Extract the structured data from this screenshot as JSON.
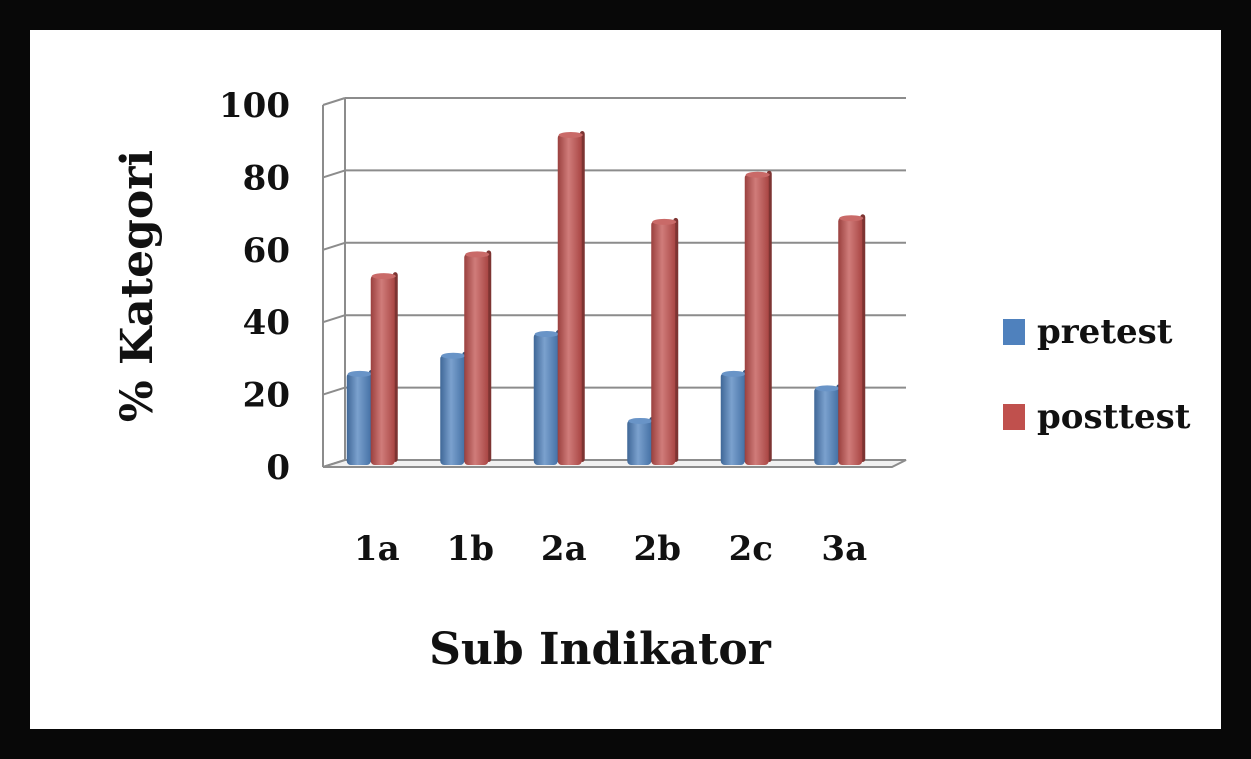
{
  "chart_data": {
    "type": "bar",
    "categories": [
      "1a",
      "1b",
      "2a",
      "2b",
      "2c",
      "3a"
    ],
    "series": [
      {
        "name": "pretest",
        "values": [
          26,
          31,
          37,
          13,
          26,
          22
        ],
        "color": "#4F81BD"
      },
      {
        "name": "posttest",
        "values": [
          53,
          59,
          92,
          68,
          81,
          69
        ],
        "color": "#C0504D"
      }
    ],
    "title": "",
    "xlabel": "Sub Indikator",
    "ylabel": "% Kategori",
    "ylim": [
      0,
      100
    ],
    "yticks": [
      "0",
      "20",
      "40",
      "60",
      "80",
      "100"
    ],
    "grid": true,
    "legend": "right"
  }
}
